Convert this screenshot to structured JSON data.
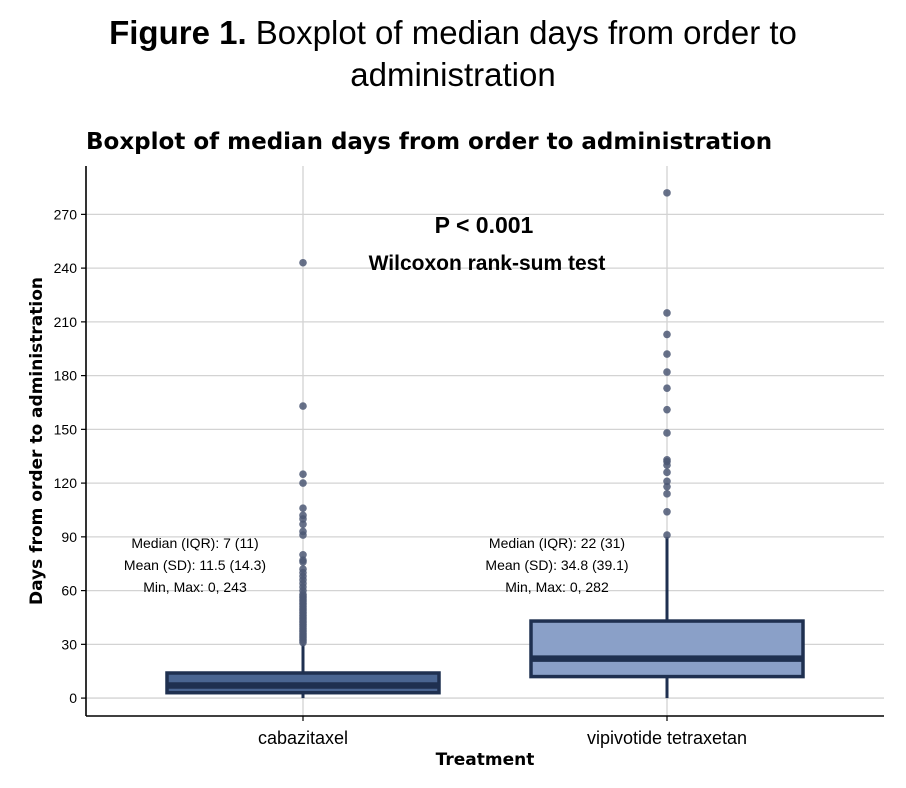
{
  "figure": {
    "label": "Figure 1.",
    "caption_line1": "Boxplot of median days from order to",
    "caption_line2": "administration"
  },
  "chart_data": {
    "type": "box",
    "title": "Boxplot of median days from order to administration",
    "xlabel": "Treatment",
    "ylabel": "Days from order to administration",
    "categories": [
      "cabazitaxel",
      "vipivotide tetraxetan"
    ],
    "ylim": [
      -10,
      297
    ],
    "yticks": [
      0,
      30,
      60,
      90,
      120,
      150,
      180,
      210,
      240,
      270
    ],
    "grid": true,
    "annotation": {
      "line1": "P < 0.001",
      "line2": "Wilcoxon rank-sum test"
    },
    "series": [
      {
        "category": "cabazitaxel",
        "fill": "#4a6591",
        "q1": 3,
        "median": 7,
        "q3": 14,
        "whisker_low": 0,
        "whisker_high": 30,
        "outliers": [
          31,
          32,
          33,
          34,
          35,
          36,
          37,
          38,
          39,
          40,
          41,
          42,
          43,
          44,
          45,
          46,
          47,
          48,
          49,
          50,
          51,
          52,
          53,
          54,
          55,
          56,
          57,
          58,
          60,
          62,
          64,
          66,
          68,
          70,
          72,
          76,
          77,
          80,
          91,
          93,
          97,
          100,
          102,
          106,
          120,
          125,
          163,
          243
        ],
        "stats": [
          "Median (IQR): 7 (11)",
          "Mean (SD): 11.5 (14.3)",
          "Min, Max: 0, 243"
        ]
      },
      {
        "category": "vipivotide tetraxetan",
        "fill": "#8aa0c8",
        "q1": 12,
        "median": 22,
        "q3": 43,
        "whisker_low": 0,
        "whisker_high": 90,
        "outliers": [
          91,
          104,
          114,
          118,
          121,
          126,
          130,
          132,
          133,
          148,
          161,
          173,
          182,
          192,
          203,
          215,
          282
        ],
        "stats": [
          "Median (IQR): 22 (31)",
          "Mean (SD): 34.8 (39.1)",
          "Min, Max: 0, 282"
        ]
      }
    ],
    "colors": {
      "box_stroke": "#1f3050",
      "outlier": "#4c5874",
      "grid": "#d3d3d3"
    }
  }
}
